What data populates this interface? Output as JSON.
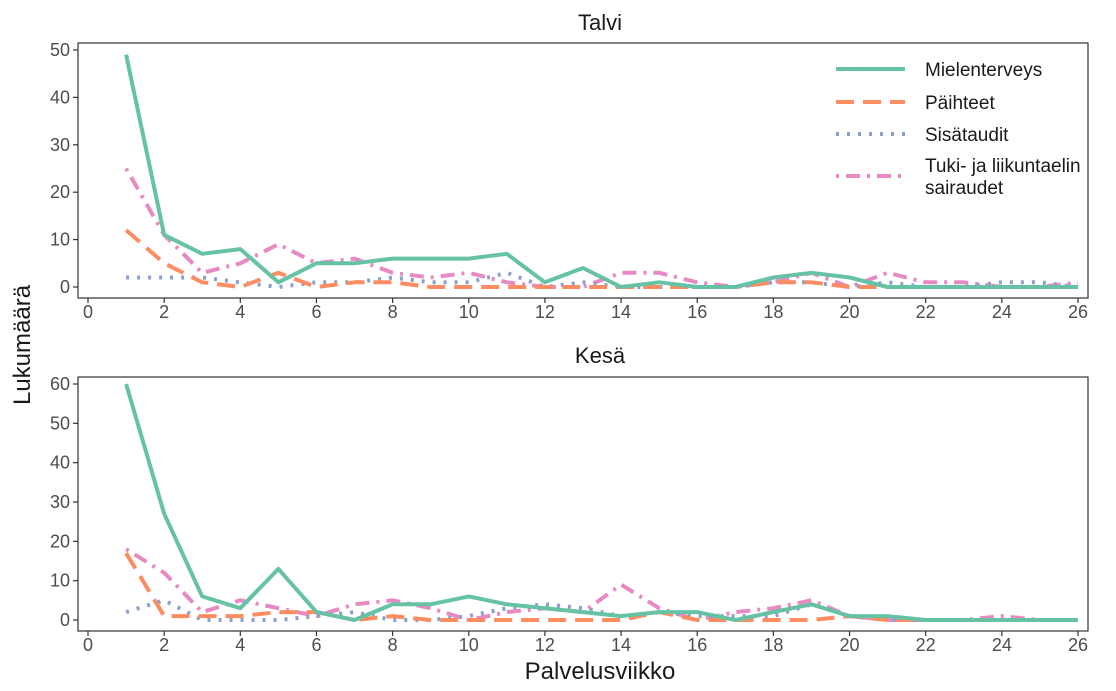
{
  "figure": {
    "xlabel": "Palvelusviikko",
    "ylabel": "Lukumäärä"
  },
  "legend": {
    "position": "top-right",
    "entries": [
      {
        "lines": [
          "Mielenterveys"
        ],
        "series_index": 0
      },
      {
        "lines": [
          "Päihteet"
        ],
        "series_index": 1
      },
      {
        "lines": [
          "Sisätaudit"
        ],
        "series_index": 2
      },
      {
        "lines": [
          "Tuki- ja liikuntaelin",
          "sairaudet"
        ],
        "series_index": 3
      }
    ]
  },
  "series_styles": [
    {
      "name": "Mielenterveys",
      "color": "#66c2a5",
      "dash": "solid"
    },
    {
      "name": "Päihteet",
      "color": "#fc8d62",
      "dash": "dashed"
    },
    {
      "name": "Sisätaudit",
      "color": "#8da0cb",
      "dash": "dotted"
    },
    {
      "name": "Tuki- ja liikuntaelin sairaudet",
      "color": "#e78ac3",
      "dash": "dotdash"
    }
  ],
  "chart_data": [
    {
      "type": "line",
      "title": "Talvi",
      "xlabel": "Palvelusviikko",
      "ylabel": "Lukumäärä",
      "xlim": [
        0,
        26
      ],
      "ylim": [
        0,
        50
      ],
      "xticks": [
        0,
        2,
        4,
        6,
        8,
        10,
        12,
        14,
        16,
        18,
        20,
        22,
        24,
        26
      ],
      "yticks": [
        0,
        10,
        20,
        30,
        40,
        50
      ],
      "grid": false,
      "x": [
        1,
        2,
        3,
        4,
        5,
        6,
        7,
        8,
        9,
        10,
        11,
        12,
        13,
        14,
        15,
        16,
        17,
        18,
        19,
        20,
        21,
        22,
        23,
        24,
        25,
        26
      ],
      "series": [
        {
          "name": "Mielenterveys",
          "values": [
            49,
            11,
            7,
            8,
            1,
            5,
            5,
            6,
            6,
            6,
            7,
            1,
            4,
            0,
            1,
            0,
            0,
            2,
            3,
            2,
            0,
            0,
            0,
            0,
            0,
            0
          ]
        },
        {
          "name": "Päihteet",
          "values": [
            12,
            5,
            1,
            0,
            3,
            0,
            1,
            1,
            0,
            0,
            0,
            0,
            0,
            0,
            0,
            0,
            0,
            1,
            1,
            0,
            0,
            0,
            0,
            0,
            0,
            0
          ]
        },
        {
          "name": "Sisätaudit",
          "values": [
            2,
            2,
            2,
            1,
            0,
            1,
            1,
            2,
            1,
            1,
            3,
            0,
            1,
            0,
            0,
            0,
            0,
            1,
            1,
            0,
            1,
            0,
            0,
            1,
            1,
            0
          ]
        },
        {
          "name": "Tuki- ja liikuntaelin sairaudet",
          "values": [
            25,
            11,
            3,
            5,
            9,
            5,
            6,
            3,
            2,
            3,
            1,
            0,
            0,
            3,
            3,
            1,
            0,
            1,
            3,
            0,
            3,
            1,
            1,
            0,
            0,
            1
          ]
        }
      ]
    },
    {
      "type": "line",
      "title": "Kesä",
      "xlabel": "Palvelusviikko",
      "ylabel": "Lukumäärä",
      "xlim": [
        0,
        26
      ],
      "ylim": [
        0,
        60
      ],
      "xticks": [
        0,
        2,
        4,
        6,
        8,
        10,
        12,
        14,
        16,
        18,
        20,
        22,
        24,
        26
      ],
      "yticks": [
        0,
        10,
        20,
        30,
        40,
        50,
        60
      ],
      "grid": false,
      "x": [
        1,
        2,
        3,
        4,
        5,
        6,
        7,
        8,
        9,
        10,
        11,
        12,
        13,
        14,
        15,
        16,
        17,
        18,
        19,
        20,
        21,
        22,
        23,
        24,
        25,
        26
      ],
      "series": [
        {
          "name": "Mielenterveys",
          "values": [
            60,
            27,
            6,
            3,
            13,
            2,
            0,
            4,
            4,
            6,
            4,
            3,
            2,
            1,
            2,
            2,
            0,
            2,
            4,
            1,
            1,
            0,
            0,
            0,
            0,
            0
          ]
        },
        {
          "name": "Päihteet",
          "values": [
            17,
            1,
            1,
            1,
            2,
            2,
            0,
            1,
            0,
            0,
            0,
            0,
            0,
            0,
            2,
            0,
            0,
            0,
            0,
            1,
            0,
            0,
            0,
            0,
            0,
            0
          ]
        },
        {
          "name": "Sisätaudit",
          "values": [
            2,
            5,
            0,
            0,
            0,
            1,
            2,
            0,
            0,
            1,
            3,
            4,
            3,
            1,
            2,
            1,
            1,
            1,
            4,
            1,
            0,
            0,
            0,
            0,
            0,
            0
          ]
        },
        {
          "name": "Tuki- ja liikuntaelin sairaudet",
          "values": [
            18,
            12,
            2,
            5,
            3,
            1,
            4,
            5,
            3,
            0,
            2,
            3,
            2,
            9,
            3,
            0,
            2,
            3,
            5,
            1,
            0,
            0,
            0,
            1,
            0,
            0
          ]
        }
      ]
    }
  ]
}
